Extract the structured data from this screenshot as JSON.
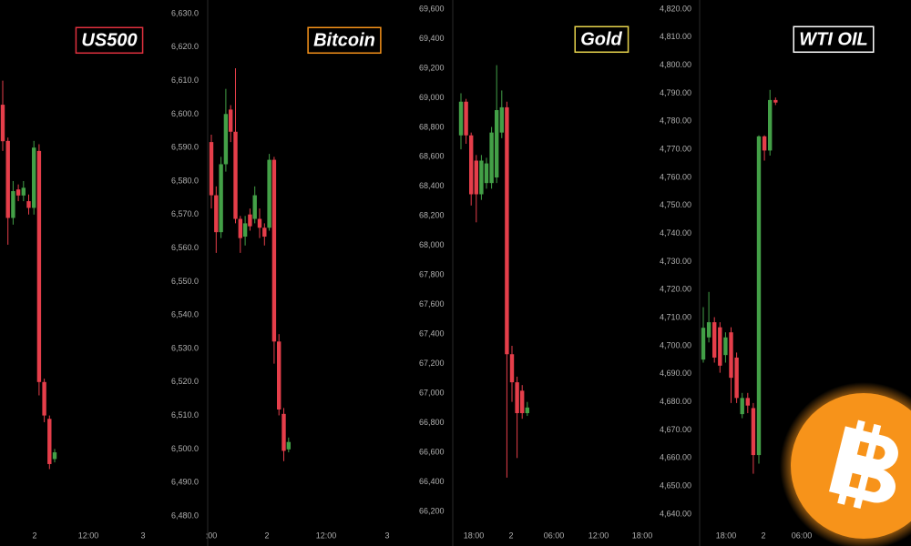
{
  "chart_data": [
    {
      "type": "candlestick",
      "title": "US500",
      "title_color": "#e0303e",
      "up_color": "#43a047",
      "down_color": "#e53e4a",
      "xtick_labels": [
        "2",
        "12:00",
        "3"
      ],
      "ylim": [
        6480,
        6630
      ],
      "yticks": [
        {
          "value": 6630,
          "label": "6,630.0"
        },
        {
          "value": 6620,
          "label": "6,620.0"
        },
        {
          "value": 6610,
          "label": "6,610.0"
        },
        {
          "value": 6600,
          "label": "6,600.0"
        },
        {
          "value": 6590,
          "label": "6,590.0"
        },
        {
          "value": 6580,
          "label": "6,580.0"
        },
        {
          "value": 6570,
          "label": "6,570.0"
        },
        {
          "value": 6560,
          "label": "6,560.0"
        },
        {
          "value": 6550,
          "label": "6,550.0"
        },
        {
          "value": 6540,
          "label": "6,540.0"
        },
        {
          "value": 6530,
          "label": "6,530.0"
        },
        {
          "value": 6520,
          "label": "6,520.0"
        },
        {
          "value": 6510,
          "label": "6,510.0"
        },
        {
          "value": 6500,
          "label": "6,500.0"
        },
        {
          "value": 6490,
          "label": "6,490.0"
        },
        {
          "value": 6480,
          "label": "6,480.0"
        }
      ],
      "open": [
        6602.8,
        6592,
        6569,
        6577.5,
        6575.7,
        6574,
        6572,
        6589,
        6520,
        6509,
        6497
      ],
      "high": [
        6610,
        6593,
        6580,
        6579,
        6580,
        6576,
        6592,
        6591,
        6521,
        6510,
        6500
      ],
      "low": [
        6589,
        6561,
        6567,
        6574,
        6574,
        6570,
        6570,
        6516,
        6508,
        6494,
        6496
      ],
      "close": [
        6591.9,
        6569,
        6577,
        6575.7,
        6578,
        6572,
        6590,
        6520,
        6510,
        6495.5,
        6499
      ]
    },
    {
      "type": "candlestick",
      "title": "Bitcoin",
      "title_color": "#f7931a",
      "up_color": "#43a047",
      "down_color": "#e53e4a",
      "xtick_labels": [
        ":00",
        "2",
        "12:00",
        "3"
      ],
      "ylim": [
        66200,
        69600
      ],
      "yticks": [
        {
          "value": 69600,
          "label": "69,600"
        },
        {
          "value": 69400,
          "label": "69,400"
        },
        {
          "value": 69200,
          "label": "69,200"
        },
        {
          "value": 69000,
          "label": "69,000"
        },
        {
          "value": 68800,
          "label": "68,800"
        },
        {
          "value": 68600,
          "label": "68,600"
        },
        {
          "value": 68400,
          "label": "68,400"
        },
        {
          "value": 68200,
          "label": "68,200"
        },
        {
          "value": 68000,
          "label": "68,000"
        },
        {
          "value": 67800,
          "label": "67,800"
        },
        {
          "value": 67600,
          "label": "67,600"
        },
        {
          "value": 67400,
          "label": "67,400"
        },
        {
          "value": 67200,
          "label": "67,200"
        },
        {
          "value": 67000,
          "label": "67,000"
        },
        {
          "value": 66800,
          "label": "66,800"
        },
        {
          "value": 66600,
          "label": "66,600"
        },
        {
          "value": 66400,
          "label": "66,400"
        },
        {
          "value": 66200,
          "label": "66,200"
        }
      ],
      "open": [
        68700,
        68340,
        68090,
        68550,
        68920,
        68770,
        68180,
        68060,
        68210,
        68180,
        68180,
        68120,
        68120,
        68580,
        67350,
        66860,
        66620
      ],
      "high": [
        68750,
        68400,
        68600,
        69060,
        68950,
        69200,
        68200,
        68200,
        68250,
        68400,
        68250,
        68150,
        68620,
        68600,
        67400,
        66900,
        66700
      ],
      "low": [
        68250,
        67950,
        68050,
        68500,
        68700,
        68150,
        67950,
        68000,
        68100,
        68150,
        68050,
        68000,
        68100,
        67200,
        66850,
        66540,
        66600
      ],
      "close": [
        68340,
        68090,
        68550,
        68890,
        68770,
        68180,
        68050,
        68150,
        68130,
        68340,
        68120,
        68060,
        68580,
        67350,
        66890,
        66610,
        66670
      ]
    },
    {
      "type": "candlestick",
      "title": "Gold",
      "title_color": "#e8d44d",
      "up_color": "#43a047",
      "down_color": "#e53e4a",
      "xtick_labels": [
        "18:00",
        "2",
        "06:00",
        "12:00",
        "18:00"
      ],
      "ylim": [
        4640,
        4820
      ],
      "yticks": [
        {
          "value": 4820,
          "label": "4,820.00"
        },
        {
          "value": 4810,
          "label": "4,810.00"
        },
        {
          "value": 4800,
          "label": "4,800.00"
        },
        {
          "value": 4790,
          "label": "4,790.00"
        },
        {
          "value": 4780,
          "label": "4,780.00"
        },
        {
          "value": 4770,
          "label": "4,770.00"
        },
        {
          "value": 4760,
          "label": "4,760.00"
        },
        {
          "value": 4750,
          "label": "4,750.00"
        },
        {
          "value": 4740,
          "label": "4,740.00"
        },
        {
          "value": 4730,
          "label": "4,730.00"
        },
        {
          "value": 4720,
          "label": "4,720.00"
        },
        {
          "value": 4710,
          "label": "4,710.00"
        },
        {
          "value": 4700,
          "label": "4,700.00"
        },
        {
          "value": 4690,
          "label": "4,690.00"
        },
        {
          "value": 4680,
          "label": "4,680.00"
        },
        {
          "value": 4670,
          "label": "4,670.00"
        },
        {
          "value": 4660,
          "label": "4,660.00"
        },
        {
          "value": 4650,
          "label": "4,650.00"
        },
        {
          "value": 4640,
          "label": "4,640.00"
        }
      ],
      "open": [
        4775,
        4787,
        4775,
        4766,
        4754,
        4758,
        4758,
        4760,
        4776,
        4785,
        4697,
        4687,
        4684,
        4676
      ],
      "high": [
        4790,
        4788,
        4776,
        4768,
        4768,
        4767,
        4778,
        4800,
        4791,
        4787,
        4700,
        4689,
        4686,
        4680
      ],
      "low": [
        4770,
        4772,
        4750,
        4744,
        4752,
        4756,
        4756,
        4758,
        4774,
        4653,
        4680,
        4660,
        4674,
        4675
      ],
      "close": [
        4787,
        4775,
        4754,
        4754,
        4766,
        4765,
        4776,
        4784,
        4785,
        4697,
        4687,
        4676,
        4676,
        4678
      ]
    },
    {
      "type": "candlestick",
      "title": "WTI OIL",
      "title_color": "#ffffff",
      "up_color": "#43a047",
      "down_color": "#e53e4a",
      "xtick_labels": [
        "18:00",
        "2",
        "06:00"
      ],
      "ylim": [
        0,
        100
      ],
      "open": [
        30.6,
        35,
        38,
        37,
        31.5,
        36,
        31,
        19.8,
        23,
        21,
        11.7,
        74.8,
        72,
        82
      ],
      "high": [
        41,
        44,
        39,
        38,
        36,
        37,
        32,
        24,
        24,
        22,
        75,
        75,
        84,
        82.5
      ],
      "low": [
        30,
        34,
        30,
        28,
        30,
        22,
        22,
        19,
        20,
        8,
        10,
        70,
        71,
        81
      ],
      "close": [
        36.9,
        38,
        31,
        29.4,
        35,
        27,
        23,
        23,
        21.5,
        11.7,
        74.8,
        72,
        82,
        81.5
      ]
    }
  ]
}
